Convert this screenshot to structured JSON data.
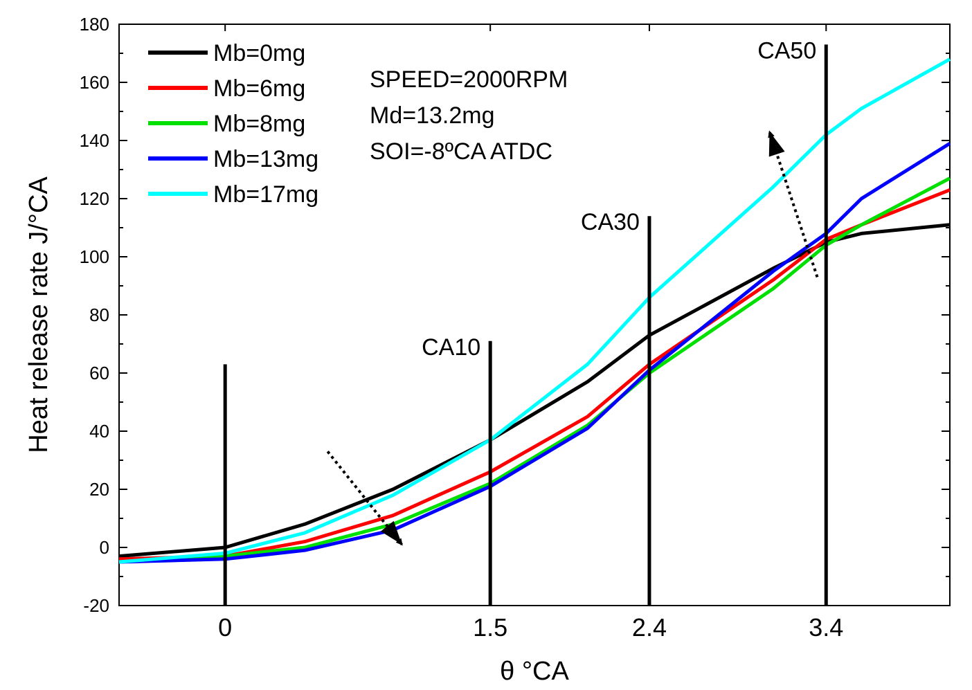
{
  "chart_data": {
    "type": "line",
    "xlabel": "θ °CA",
    "ylabel": "Heat release rate J/°CA",
    "xlim": [
      -0.6,
      4.1
    ],
    "ylim": [
      -20,
      180
    ],
    "yticks": [
      -20,
      0,
      20,
      40,
      60,
      80,
      100,
      120,
      140,
      160,
      180
    ],
    "xticks": [
      0,
      1.5,
      2.4,
      3.4
    ],
    "xtick_labels": [
      "0",
      "1.5",
      "2.4",
      "3.4"
    ],
    "x": [
      -0.6,
      0,
      0.45,
      0.95,
      1.5,
      2.05,
      2.4,
      3.1,
      3.4,
      3.6,
      4.1
    ],
    "series": [
      {
        "name": "Mb=0mg",
        "color": "#000000",
        "values": [
          -3,
          0,
          8,
          20,
          37,
          57,
          73,
          96,
          105,
          108,
          111
        ]
      },
      {
        "name": "Mb=6mg",
        "color": "#ff0000",
        "values": [
          -4,
          -3,
          2,
          11,
          26,
          45,
          63,
          92,
          106,
          111,
          123
        ]
      },
      {
        "name": "Mb=8mg",
        "color": "#00e000",
        "values": [
          -5,
          -3,
          0,
          8,
          22,
          42,
          60,
          89,
          104,
          111,
          127
        ]
      },
      {
        "name": "Mb=13mg",
        "color": "#0000ff",
        "values": [
          -5,
          -4,
          -1,
          6,
          21,
          41,
          61,
          95,
          108,
          120,
          139
        ]
      },
      {
        "name": "Mb=17mg",
        "color": "#00ffff",
        "values": [
          -5,
          -2,
          5,
          18,
          37,
          63,
          86,
          124,
          142,
          151,
          168
        ]
      }
    ],
    "vertical_markers": [
      {
        "label": "",
        "x": 0,
        "y_top": 63
      },
      {
        "label": "CA10",
        "x": 1.5,
        "y_top": 71
      },
      {
        "label": "CA30",
        "x": 2.4,
        "y_top": 114
      },
      {
        "label": "CA50",
        "x": 3.4,
        "y_top": 173
      }
    ],
    "annotations": [
      {
        "type": "dotted-arrow",
        "from": [
          0.58,
          33
        ],
        "to": [
          1.0,
          1
        ]
      },
      {
        "type": "dotted-arrow",
        "from": [
          3.35,
          93
        ],
        "to": [
          3.08,
          143
        ]
      }
    ],
    "legend": {
      "position": "top-left"
    },
    "info_lines": [
      "SPEED=2000RPM",
      "Md=13.2mg",
      "SOI=-8ºCA   ATDC"
    ],
    "grid": false
  }
}
